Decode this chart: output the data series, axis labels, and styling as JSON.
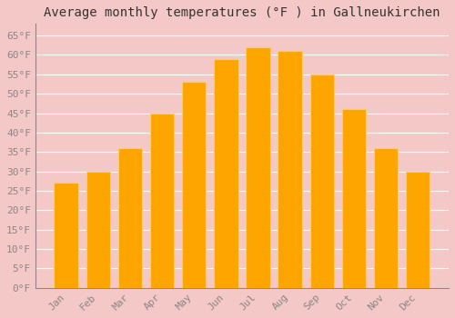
{
  "title": "Average monthly temperatures (°F ) in Gallneukirchen",
  "months": [
    "Jan",
    "Feb",
    "Mar",
    "Apr",
    "May",
    "Jun",
    "Jul",
    "Aug",
    "Sep",
    "Oct",
    "Nov",
    "Dec"
  ],
  "values": [
    27,
    30,
    36,
    45,
    53,
    59,
    62,
    61,
    55,
    46,
    36,
    30
  ],
  "bar_color": "#FFA500",
  "bar_edge_color": "#FFCC66",
  "background_color": "#F5C8C8",
  "plot_bg_color": "#F5C8C8",
  "grid_color": "#FFFFFF",
  "ylim": [
    0,
    68
  ],
  "yticks": [
    0,
    5,
    10,
    15,
    20,
    25,
    30,
    35,
    40,
    45,
    50,
    55,
    60,
    65
  ],
  "title_fontsize": 10,
  "tick_fontsize": 8,
  "tick_color": "#888888",
  "axis_color": "#888888",
  "title_color": "#333333"
}
